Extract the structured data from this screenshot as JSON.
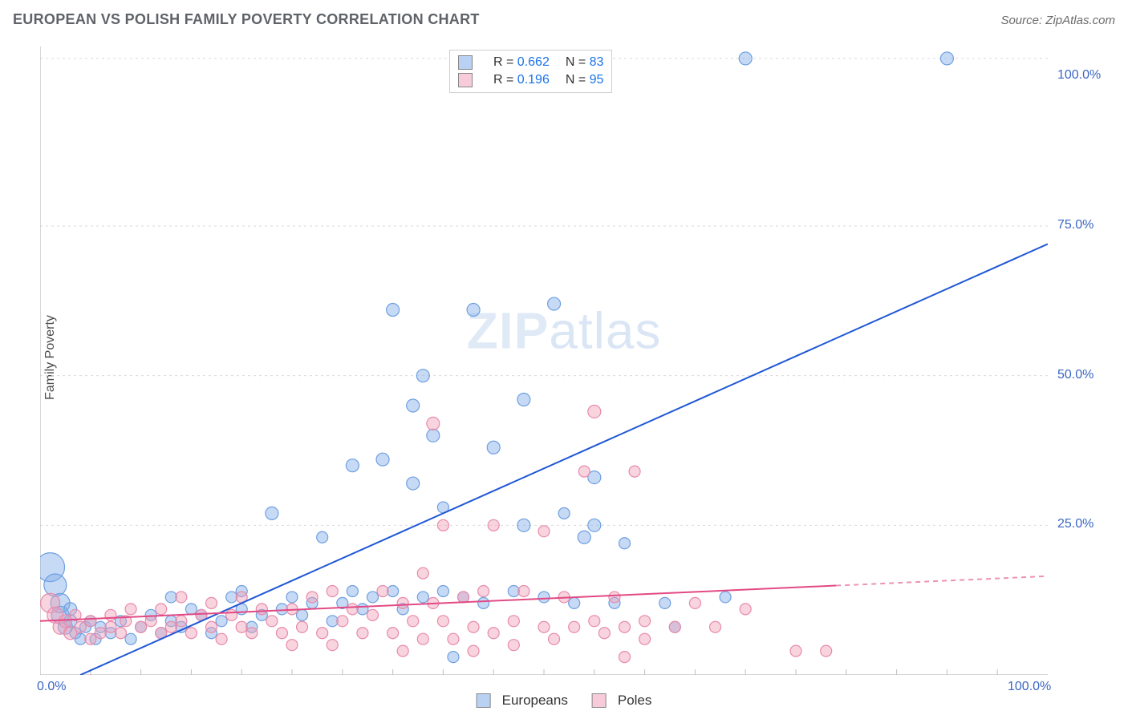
{
  "title": "EUROPEAN VS POLISH FAMILY POVERTY CORRELATION CHART",
  "source_label": "Source: ZipAtlas.com",
  "y_axis_label": "Family Poverty",
  "watermark": {
    "part1": "ZIP",
    "part2": "atlas"
  },
  "chart": {
    "type": "scatter-with-trendlines",
    "background": "#ffffff",
    "grid_color": "#d9d9d9",
    "grid_dash": "3,4",
    "axis_color": "#bfbfbf",
    "xlim": [
      0,
      100
    ],
    "ylim": [
      0,
      105
    ],
    "x_ticks_major": [
      0,
      100
    ],
    "x_ticks_minor_step": 5,
    "y_ticks_major": [
      25,
      50,
      75,
      100
    ],
    "y_gridlines": [
      0,
      25,
      50,
      75,
      103
    ],
    "right_tick_labels": {
      "25": "25.0%",
      "50": "50.0%",
      "75": "75.0%",
      "100": "100.0%"
    },
    "x_tick_labels": {
      "0": "0.0%",
      "100": "100.0%"
    },
    "tick_label_color": "#3a66c4",
    "tick_label_fontsize": 16
  },
  "series": [
    {
      "name": "Europeans",
      "color_fill": "rgba(128,172,232,0.45)",
      "color_stroke": "#6f9fe0",
      "trend": {
        "color": "#1f57d6",
        "width": 2,
        "x1": 0,
        "y1": -3,
        "x2": 100,
        "y2": 72,
        "dash_after_x": null
      },
      "R": "0.662",
      "N": "83",
      "points": [
        {
          "x": 1,
          "y": 18,
          "r": 18
        },
        {
          "x": 1.5,
          "y": 15,
          "r": 14
        },
        {
          "x": 2,
          "y": 12,
          "r": 12
        },
        {
          "x": 2,
          "y": 10,
          "r": 11
        },
        {
          "x": 2.5,
          "y": 8,
          "r": 9
        },
        {
          "x": 3,
          "y": 9,
          "r": 8
        },
        {
          "x": 3,
          "y": 11,
          "r": 8
        },
        {
          "x": 3.5,
          "y": 7,
          "r": 7
        },
        {
          "x": 4,
          "y": 6,
          "r": 7
        },
        {
          "x": 4.5,
          "y": 8,
          "r": 7
        },
        {
          "x": 5,
          "y": 9,
          "r": 7
        },
        {
          "x": 5.5,
          "y": 6,
          "r": 7
        },
        {
          "x": 6,
          "y": 8,
          "r": 7
        },
        {
          "x": 7,
          "y": 7,
          "r": 7
        },
        {
          "x": 8,
          "y": 9,
          "r": 7
        },
        {
          "x": 9,
          "y": 6,
          "r": 7
        },
        {
          "x": 10,
          "y": 8,
          "r": 7
        },
        {
          "x": 11,
          "y": 10,
          "r": 7
        },
        {
          "x": 12,
          "y": 7,
          "r": 7
        },
        {
          "x": 13,
          "y": 9,
          "r": 7
        },
        {
          "x": 13,
          "y": 13,
          "r": 7
        },
        {
          "x": 14,
          "y": 8,
          "r": 7
        },
        {
          "x": 15,
          "y": 11,
          "r": 7
        },
        {
          "x": 16,
          "y": 10,
          "r": 7
        },
        {
          "x": 17,
          "y": 7,
          "r": 7
        },
        {
          "x": 18,
          "y": 9,
          "r": 7
        },
        {
          "x": 19,
          "y": 13,
          "r": 7
        },
        {
          "x": 20,
          "y": 11,
          "r": 7
        },
        {
          "x": 20,
          "y": 14,
          "r": 7
        },
        {
          "x": 21,
          "y": 8,
          "r": 7
        },
        {
          "x": 22,
          "y": 10,
          "r": 7
        },
        {
          "x": 23,
          "y": 27,
          "r": 8
        },
        {
          "x": 24,
          "y": 11,
          "r": 7
        },
        {
          "x": 25,
          "y": 13,
          "r": 7
        },
        {
          "x": 26,
          "y": 10,
          "r": 7
        },
        {
          "x": 27,
          "y": 12,
          "r": 7
        },
        {
          "x": 28,
          "y": 23,
          "r": 7
        },
        {
          "x": 29,
          "y": 9,
          "r": 7
        },
        {
          "x": 30,
          "y": 12,
          "r": 7
        },
        {
          "x": 31,
          "y": 14,
          "r": 7
        },
        {
          "x": 31,
          "y": 35,
          "r": 8
        },
        {
          "x": 32,
          "y": 11,
          "r": 7
        },
        {
          "x": 33,
          "y": 13,
          "r": 7
        },
        {
          "x": 34,
          "y": 36,
          "r": 8
        },
        {
          "x": 35,
          "y": 14,
          "r": 7
        },
        {
          "x": 35,
          "y": 61,
          "r": 8
        },
        {
          "x": 36,
          "y": 11,
          "r": 7
        },
        {
          "x": 37,
          "y": 32,
          "r": 8
        },
        {
          "x": 37,
          "y": 45,
          "r": 8
        },
        {
          "x": 38,
          "y": 50,
          "r": 8
        },
        {
          "x": 38,
          "y": 13,
          "r": 7
        },
        {
          "x": 39,
          "y": 40,
          "r": 8
        },
        {
          "x": 40,
          "y": 14,
          "r": 7
        },
        {
          "x": 40,
          "y": 28,
          "r": 7
        },
        {
          "x": 41,
          "y": 3,
          "r": 7
        },
        {
          "x": 42,
          "y": 13,
          "r": 7
        },
        {
          "x": 43,
          "y": 61,
          "r": 8
        },
        {
          "x": 44,
          "y": 12,
          "r": 7
        },
        {
          "x": 45,
          "y": 38,
          "r": 8
        },
        {
          "x": 47,
          "y": 14,
          "r": 7
        },
        {
          "x": 48,
          "y": 46,
          "r": 8
        },
        {
          "x": 48,
          "y": 25,
          "r": 8
        },
        {
          "x": 50,
          "y": 13,
          "r": 7
        },
        {
          "x": 51,
          "y": 62,
          "r": 8
        },
        {
          "x": 52,
          "y": 27,
          "r": 7
        },
        {
          "x": 53,
          "y": 12,
          "r": 7
        },
        {
          "x": 54,
          "y": 23,
          "r": 8
        },
        {
          "x": 55,
          "y": 33,
          "r": 8
        },
        {
          "x": 55,
          "y": 25,
          "r": 8
        },
        {
          "x": 57,
          "y": 12,
          "r": 7
        },
        {
          "x": 58,
          "y": 22,
          "r": 7
        },
        {
          "x": 62,
          "y": 12,
          "r": 7
        },
        {
          "x": 63,
          "y": 8,
          "r": 7
        },
        {
          "x": 68,
          "y": 13,
          "r": 7
        },
        {
          "x": 70,
          "y": 103,
          "r": 8
        },
        {
          "x": 90,
          "y": 103,
          "r": 8
        }
      ]
    },
    {
      "name": "Poles",
      "color_fill": "rgba(240,160,185,0.45)",
      "color_stroke": "#e88aab",
      "trend": {
        "color": "#e24a84",
        "width": 2,
        "x1": 0,
        "y1": 9,
        "x2": 100,
        "y2": 16.5,
        "dash_after_x": 79
      },
      "R": "0.196",
      "N": "95",
      "points": [
        {
          "x": 1,
          "y": 12,
          "r": 12
        },
        {
          "x": 1.5,
          "y": 10,
          "r": 10
        },
        {
          "x": 2,
          "y": 8,
          "r": 9
        },
        {
          "x": 2.5,
          "y": 9,
          "r": 8
        },
        {
          "x": 3,
          "y": 7,
          "r": 8
        },
        {
          "x": 3.5,
          "y": 10,
          "r": 7
        },
        {
          "x": 4,
          "y": 8,
          "r": 7
        },
        {
          "x": 5,
          "y": 9,
          "r": 7
        },
        {
          "x": 5,
          "y": 6,
          "r": 7
        },
        {
          "x": 6,
          "y": 7,
          "r": 7
        },
        {
          "x": 7,
          "y": 8,
          "r": 7
        },
        {
          "x": 7,
          "y": 10,
          "r": 7
        },
        {
          "x": 8,
          "y": 7,
          "r": 7
        },
        {
          "x": 8.5,
          "y": 9,
          "r": 7
        },
        {
          "x": 9,
          "y": 11,
          "r": 7
        },
        {
          "x": 10,
          "y": 8,
          "r": 7
        },
        {
          "x": 11,
          "y": 9,
          "r": 7
        },
        {
          "x": 12,
          "y": 7,
          "r": 7
        },
        {
          "x": 12,
          "y": 11,
          "r": 7
        },
        {
          "x": 13,
          "y": 8,
          "r": 7
        },
        {
          "x": 14,
          "y": 13,
          "r": 7
        },
        {
          "x": 14,
          "y": 9,
          "r": 7
        },
        {
          "x": 15,
          "y": 7,
          "r": 7
        },
        {
          "x": 16,
          "y": 10,
          "r": 7
        },
        {
          "x": 17,
          "y": 12,
          "r": 7
        },
        {
          "x": 17,
          "y": 8,
          "r": 7
        },
        {
          "x": 18,
          "y": 6,
          "r": 7
        },
        {
          "x": 19,
          "y": 10,
          "r": 7
        },
        {
          "x": 20,
          "y": 8,
          "r": 7
        },
        {
          "x": 20,
          "y": 13,
          "r": 7
        },
        {
          "x": 21,
          "y": 7,
          "r": 7
        },
        {
          "x": 22,
          "y": 11,
          "r": 7
        },
        {
          "x": 23,
          "y": 9,
          "r": 7
        },
        {
          "x": 24,
          "y": 7,
          "r": 7
        },
        {
          "x": 25,
          "y": 11,
          "r": 7
        },
        {
          "x": 25,
          "y": 5,
          "r": 7
        },
        {
          "x": 26,
          "y": 8,
          "r": 7
        },
        {
          "x": 27,
          "y": 13,
          "r": 7
        },
        {
          "x": 28,
          "y": 7,
          "r": 7
        },
        {
          "x": 29,
          "y": 14,
          "r": 7
        },
        {
          "x": 29,
          "y": 5,
          "r": 7
        },
        {
          "x": 30,
          "y": 9,
          "r": 7
        },
        {
          "x": 31,
          "y": 11,
          "r": 7
        },
        {
          "x": 32,
          "y": 7,
          "r": 7
        },
        {
          "x": 33,
          "y": 10,
          "r": 7
        },
        {
          "x": 34,
          "y": 14,
          "r": 7
        },
        {
          "x": 35,
          "y": 7,
          "r": 7
        },
        {
          "x": 36,
          "y": 4,
          "r": 7
        },
        {
          "x": 36,
          "y": 12,
          "r": 7
        },
        {
          "x": 37,
          "y": 9,
          "r": 7
        },
        {
          "x": 38,
          "y": 17,
          "r": 7
        },
        {
          "x": 38,
          "y": 6,
          "r": 7
        },
        {
          "x": 39,
          "y": 12,
          "r": 7
        },
        {
          "x": 39,
          "y": 42,
          "r": 8
        },
        {
          "x": 40,
          "y": 9,
          "r": 7
        },
        {
          "x": 40,
          "y": 25,
          "r": 7
        },
        {
          "x": 41,
          "y": 6,
          "r": 7
        },
        {
          "x": 42,
          "y": 13,
          "r": 7
        },
        {
          "x": 43,
          "y": 8,
          "r": 7
        },
        {
          "x": 43,
          "y": 4,
          "r": 7
        },
        {
          "x": 44,
          "y": 14,
          "r": 7
        },
        {
          "x": 45,
          "y": 7,
          "r": 7
        },
        {
          "x": 45,
          "y": 25,
          "r": 7
        },
        {
          "x": 47,
          "y": 9,
          "r": 7
        },
        {
          "x": 47,
          "y": 5,
          "r": 7
        },
        {
          "x": 48,
          "y": 14,
          "r": 7
        },
        {
          "x": 50,
          "y": 8,
          "r": 7
        },
        {
          "x": 50,
          "y": 24,
          "r": 7
        },
        {
          "x": 51,
          "y": 6,
          "r": 7
        },
        {
          "x": 52,
          "y": 13,
          "r": 7
        },
        {
          "x": 53,
          "y": 8,
          "r": 7
        },
        {
          "x": 54,
          "y": 34,
          "r": 7
        },
        {
          "x": 55,
          "y": 9,
          "r": 7
        },
        {
          "x": 55,
          "y": 44,
          "r": 8
        },
        {
          "x": 56,
          "y": 7,
          "r": 7
        },
        {
          "x": 57,
          "y": 13,
          "r": 7
        },
        {
          "x": 58,
          "y": 8,
          "r": 7
        },
        {
          "x": 58,
          "y": 3,
          "r": 7
        },
        {
          "x": 59,
          "y": 34,
          "r": 7
        },
        {
          "x": 60,
          "y": 9,
          "r": 7
        },
        {
          "x": 60,
          "y": 6,
          "r": 7
        },
        {
          "x": 63,
          "y": 8,
          "r": 7
        },
        {
          "x": 65,
          "y": 12,
          "r": 7
        },
        {
          "x": 67,
          "y": 8,
          "r": 7
        },
        {
          "x": 70,
          "y": 11,
          "r": 7
        },
        {
          "x": 75,
          "y": 4,
          "r": 7
        },
        {
          "x": 78,
          "y": 4,
          "r": 7
        }
      ]
    }
  ],
  "legend_top": {
    "rows": [
      {
        "swatch": "rgba(128,172,232,0.55)",
        "R_label": "R =",
        "R_value": "0.662",
        "N_label": "N =",
        "N_value": "83"
      },
      {
        "swatch": "rgba(240,160,185,0.55)",
        "R_label": "R =",
        "R_value": "0.196",
        "N_label": "N =",
        "N_value": "95"
      }
    ]
  },
  "legend_bottom": {
    "items": [
      {
        "swatch": "rgba(128,172,232,0.55)",
        "label": "Europeans"
      },
      {
        "swatch": "rgba(240,160,185,0.55)",
        "label": "Poles"
      }
    ]
  }
}
